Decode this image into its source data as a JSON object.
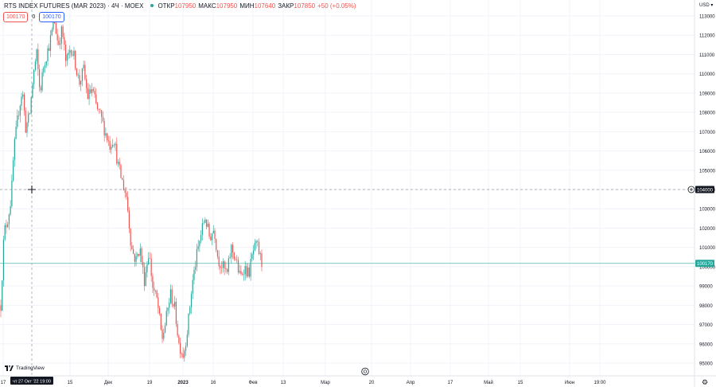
{
  "header": {
    "symbol": "RTS INDEX FUTURES (MAR 2023) · 4Ч · MOEX",
    "ohlc": [
      {
        "key": "ОТКР",
        "value": "107950"
      },
      {
        "key": "МАКС",
        "value": "107950"
      },
      {
        "key": "МИН",
        "value": "107640"
      },
      {
        "key": "ЗАКР",
        "value": "107850"
      }
    ],
    "change": "+50 (+0.05%)",
    "bid": "100170",
    "spread": "0",
    "ask": "100170"
  },
  "currency_label": "USD",
  "crosshair": {
    "price_label": "104000",
    "time_label": "чт 27 Окт '22   19:00"
  },
  "last_price_label": "100170",
  "branding": {
    "logo_text": "TradingView"
  },
  "colors": {
    "up": "#26a69a",
    "down": "#ef5350",
    "last_price": "#26a69a",
    "crosshair": "#9598a1",
    "grid": "#f0f3fa"
  },
  "chart_data": {
    "type": "candlestick",
    "title": "RTS INDEX FUTURES (MAR 2023) · 4Ч · MOEX",
    "x_tick_labels": [
      "17",
      "15",
      "Дек",
      "19",
      "2023",
      "16",
      "Фев",
      "13",
      "Мар",
      "20",
      "Апр",
      "17",
      "Май",
      "15",
      "Июн",
      "19:00"
    ],
    "y_tick_labels": [
      "113000",
      "112000",
      "111000",
      "110000",
      "109000",
      "108000",
      "107000",
      "106000",
      "105000",
      "104000",
      "103000",
      "102000",
      "101000",
      "100000",
      "99000",
      "98000",
      "97000",
      "96000",
      "95000"
    ],
    "ylim": [
      94600,
      113700
    ],
    "price_path": [
      [
        0,
        98000
      ],
      [
        0.05,
        101800
      ],
      [
        0.11,
        102500
      ],
      [
        0.16,
        103600
      ],
      [
        0.2,
        106000
      ],
      [
        0.27,
        108000
      ],
      [
        0.33,
        109200
      ],
      [
        0.38,
        107200
      ],
      [
        0.44,
        107800
      ],
      [
        0.5,
        110000
      ],
      [
        0.55,
        111000
      ],
      [
        0.6,
        109000
      ],
      [
        0.66,
        110500
      ],
      [
        0.75,
        111600
      ],
      [
        0.82,
        112800
      ],
      [
        0.88,
        111500
      ],
      [
        0.94,
        112300
      ],
      [
        1.0,
        110500
      ],
      [
        1.07,
        111400
      ],
      [
        1.13,
        110800
      ],
      [
        1.2,
        109500
      ],
      [
        1.27,
        110200
      ],
      [
        1.33,
        108800
      ],
      [
        1.4,
        109200
      ],
      [
        1.47,
        108200
      ],
      [
        1.53,
        107800
      ],
      [
        1.6,
        107000
      ],
      [
        1.67,
        106300
      ],
      [
        1.73,
        106700
      ],
      [
        1.8,
        105200
      ],
      [
        1.87,
        104300
      ],
      [
        1.93,
        103600
      ],
      [
        2.0,
        101000
      ],
      [
        2.07,
        100300
      ],
      [
        2.13,
        101000
      ],
      [
        2.2,
        99300
      ],
      [
        2.27,
        100800
      ],
      [
        2.33,
        98900
      ],
      [
        2.4,
        98200
      ],
      [
        2.47,
        96200
      ],
      [
        2.53,
        97200
      ],
      [
        2.6,
        98600
      ],
      [
        2.67,
        97800
      ],
      [
        2.73,
        96000
      ],
      [
        2.8,
        95400
      ],
      [
        2.87,
        97000
      ],
      [
        2.93,
        99000
      ],
      [
        3.0,
        100500
      ],
      [
        3.07,
        101700
      ],
      [
        3.13,
        102600
      ],
      [
        3.2,
        101500
      ],
      [
        3.27,
        102000
      ],
      [
        3.33,
        100400
      ],
      [
        3.4,
        100000
      ],
      [
        3.47,
        99600
      ],
      [
        3.53,
        101000
      ],
      [
        3.6,
        100400
      ],
      [
        3.67,
        99400
      ],
      [
        3.73,
        100000
      ],
      [
        3.8,
        99600
      ],
      [
        3.87,
        100800
      ],
      [
        3.93,
        101100
      ],
      [
        4.0,
        100170
      ]
    ],
    "last_price": 100170,
    "crosshair_price": 104000,
    "grid": true,
    "legend": "top-left"
  }
}
